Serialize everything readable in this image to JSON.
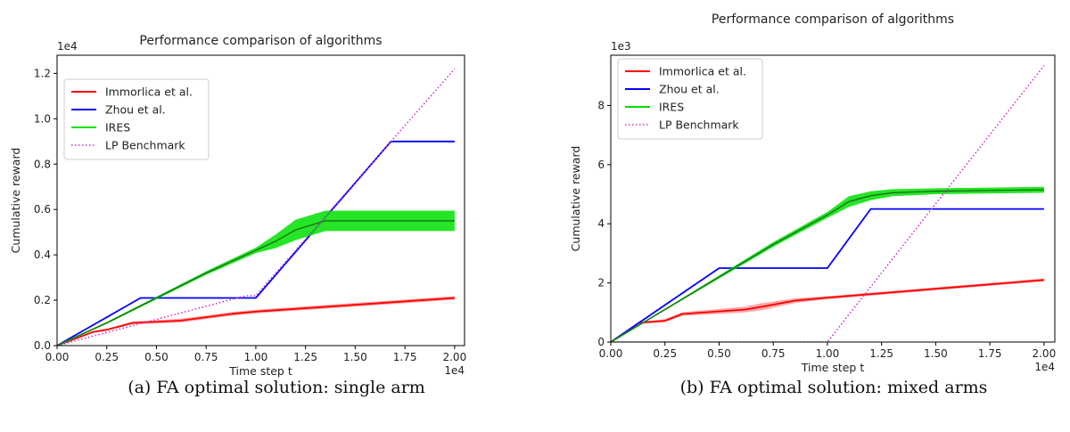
{
  "chart_data": [
    {
      "type": "line",
      "title": "Performance comparison of algorithms",
      "xlabel": "Time step t",
      "ylabel": "Cumulative reward",
      "x_multiplier": "1e4",
      "y_multiplier": "1e4",
      "xlim": [
        0,
        2.05
      ],
      "ylim": [
        0,
        1.28
      ],
      "xticks": [
        "0.00",
        "0.25",
        "0.50",
        "0.75",
        "1.00",
        "1.25",
        "1.50",
        "1.75",
        "2.00"
      ],
      "yticks": [
        "0.0",
        "0.2",
        "0.4",
        "0.6",
        "0.8",
        "1.0",
        "1.2"
      ],
      "legend_position": "top-left",
      "caption": "(a) FA optimal solution: single arm",
      "series": [
        {
          "name": "Immorlica et al.",
          "color": "#ff0000",
          "style": "solid",
          "x": [
            0,
            0.18,
            0.25,
            0.38,
            0.62,
            0.88,
            1.0,
            1.5,
            2.0
          ],
          "y": [
            0,
            0.06,
            0.07,
            0.1,
            0.11,
            0.14,
            0.15,
            0.18,
            0.21
          ],
          "band": [
            0,
            0.004,
            0.004,
            0.006,
            0.008,
            0.008,
            0.008,
            0.008,
            0.008
          ]
        },
        {
          "name": "Zhou et al.",
          "color": "#0000ff",
          "style": "solid",
          "x": [
            0,
            0.2,
            0.42,
            1.0,
            1.68,
            2.0
          ],
          "y": [
            0,
            0.1,
            0.21,
            0.21,
            0.9,
            0.9
          ]
        },
        {
          "name": "IRES",
          "color": "#00e000",
          "style": "solid",
          "x": [
            0,
            0.25,
            0.5,
            0.75,
            1.0,
            1.1,
            1.2,
            1.35,
            1.5,
            2.0
          ],
          "y": [
            0,
            0.1,
            0.21,
            0.32,
            0.42,
            0.46,
            0.51,
            0.55,
            0.55,
            0.55
          ],
          "band": [
            0,
            0.004,
            0.006,
            0.008,
            0.012,
            0.03,
            0.045,
            0.045,
            0.045,
            0.045
          ]
        },
        {
          "name": "LP Benchmark",
          "color": "#cc33cc",
          "style": "dotted",
          "x": [
            0,
            0.95,
            1.0,
            2.0
          ],
          "y": [
            0,
            0.22,
            0.22,
            1.22
          ]
        }
      ]
    },
    {
      "type": "line",
      "title": "Performance comparison of algorithms",
      "xlabel": "Time step t",
      "ylabel": "Cumulative reward",
      "x_multiplier": "1e4",
      "y_multiplier": "1e3",
      "xlim": [
        0,
        2.05
      ],
      "ylim": [
        0,
        9.7
      ],
      "xticks": [
        "0.00",
        "0.25",
        "0.50",
        "0.75",
        "1.00",
        "1.25",
        "1.50",
        "1.75",
        "2.00"
      ],
      "yticks": [
        "0",
        "2",
        "4",
        "6",
        "8"
      ],
      "legend_position": "top-left",
      "caption": "(b) FA optimal solution: mixed arms",
      "series": [
        {
          "name": "Immorlica et al.",
          "color": "#ff0000",
          "style": "solid",
          "x": [
            0,
            0.13,
            0.25,
            0.33,
            0.62,
            0.7,
            0.85,
            1.0,
            1.5,
            2.0
          ],
          "y": [
            0,
            0.65,
            0.72,
            0.95,
            1.1,
            1.2,
            1.4,
            1.5,
            1.8,
            2.1
          ],
          "band": [
            0,
            0.04,
            0.05,
            0.06,
            0.1,
            0.12,
            0.08,
            0.05,
            0.05,
            0.05
          ]
        },
        {
          "name": "Zhou et al.",
          "color": "#0000ff",
          "style": "solid",
          "x": [
            0,
            0.25,
            0.5,
            1.0,
            1.2,
            2.0
          ],
          "y": [
            0,
            1.25,
            2.5,
            2.5,
            4.5,
            4.5
          ]
        },
        {
          "name": "IRES",
          "color": "#00e000",
          "style": "solid",
          "x": [
            0,
            0.5,
            0.75,
            1.0,
            1.1,
            1.2,
            1.3,
            1.5,
            2.0
          ],
          "y": [
            0,
            2.2,
            3.3,
            4.3,
            4.75,
            4.95,
            5.05,
            5.1,
            5.15
          ],
          "band": [
            0,
            0.05,
            0.08,
            0.1,
            0.18,
            0.15,
            0.12,
            0.1,
            0.1
          ]
        },
        {
          "name": "LP Benchmark",
          "color": "#cc33cc",
          "style": "dotted",
          "x": [
            0,
            1.0,
            2.0
          ],
          "y": [
            0,
            0,
            9.35
          ]
        }
      ]
    }
  ]
}
